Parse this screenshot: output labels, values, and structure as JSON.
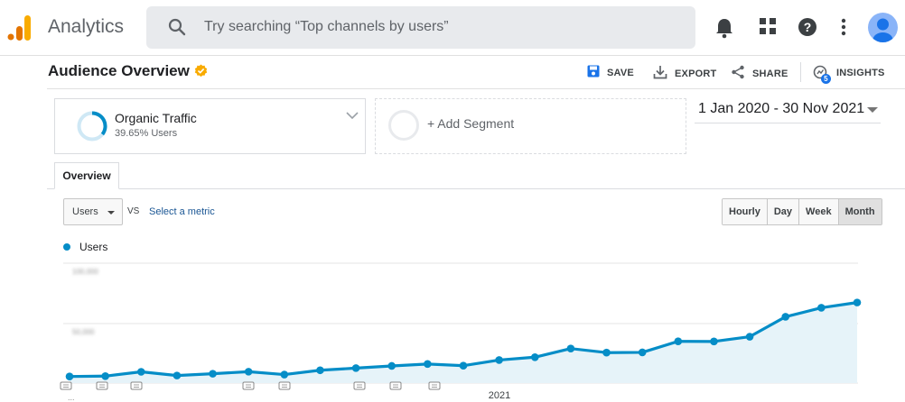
{
  "header": {
    "app_title": "Analytics",
    "search_placeholder": "Try searching “Top channels by users”",
    "icons": [
      "logo-icon",
      "search-icon",
      "bell-icon",
      "apps-icon",
      "help-icon",
      "more-vert-icon",
      "account-avatar"
    ]
  },
  "page": {
    "title": "Audience Overview",
    "actions": {
      "save": "SAVE",
      "export": "EXPORT",
      "share": "SHARE",
      "insights": "INSIGHTS",
      "insights_badge": "5"
    }
  },
  "segment": {
    "name": "Organic Traffic",
    "sub": "39.65% Users",
    "add_label": "+ Add Segment"
  },
  "date_range": "1 Jan 2020 - 30 Nov 2021",
  "tabs": {
    "overview": "Overview"
  },
  "controls": {
    "metric": "Users",
    "vs": "VS",
    "select_metric": "Select a metric",
    "granularity": [
      "Hourly",
      "Day",
      "Week",
      "Month"
    ],
    "active_granularity": "Month"
  },
  "colors": {
    "line": "#058dc7",
    "area": "#e6f3f9",
    "accent": "#f9ab00"
  },
  "chart_data": {
    "type": "area",
    "legend": "Users",
    "x": [
      "2020-01",
      "2020-02",
      "2020-03",
      "2020-04",
      "2020-05",
      "2020-06",
      "2020-07",
      "2020-08",
      "2020-09",
      "2020-10",
      "2020-11",
      "2020-12",
      "2021-01",
      "2021-02",
      "2021-03",
      "2021-04",
      "2021-05",
      "2021-06",
      "2021-07",
      "2021-08",
      "2021-09",
      "2021-10",
      "2021-11"
    ],
    "series": [
      {
        "name": "Users",
        "values": [
          5.5,
          5.8,
          9.4,
          6.3,
          7.8,
          9.5,
          7.1,
          10.7,
          12.5,
          14.3,
          15.9,
          14.5,
          19.2,
          21.6,
          28.8,
          25.4,
          25.6,
          34.8,
          34.7,
          38.7,
          55.3,
          62.8,
          67.2
        ]
      }
    ],
    "ylim": [
      0,
      100
    ],
    "x_tick_label": "2021"
  }
}
